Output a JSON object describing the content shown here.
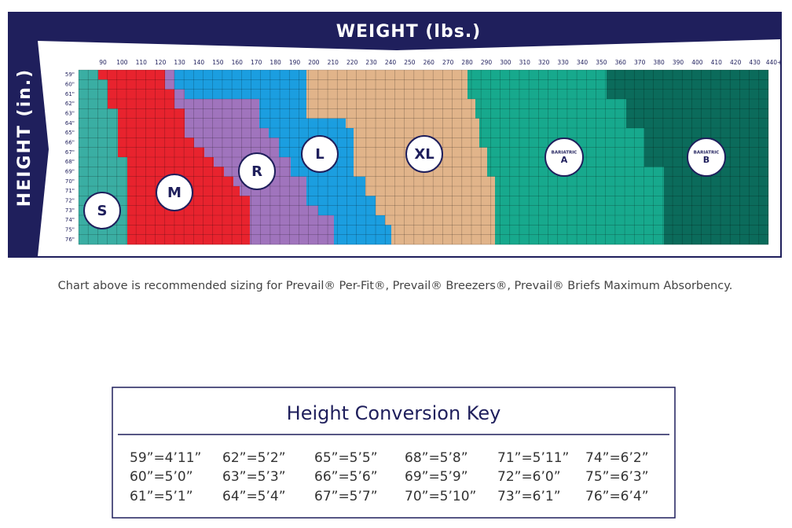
{
  "header": {
    "title": "WEIGHT (lbs.)",
    "side_title": "HEIGHT (in.)"
  },
  "weight_labels": [
    "90",
    "100",
    "110",
    "120",
    "130",
    "140",
    "150",
    "160",
    "170",
    "180",
    "190",
    "200",
    "210",
    "220",
    "230",
    "240",
    "250",
    "260",
    "270",
    "280",
    "290",
    "300",
    "310",
    "320",
    "330",
    "340",
    "350",
    "360",
    "370",
    "380",
    "390",
    "400",
    "410",
    "420",
    "430",
    "440+"
  ],
  "height_labels": [
    "59\"",
    "60\"",
    "61\"",
    "62\"",
    "63\"",
    "64\"",
    "65\"",
    "66\"",
    "67\"",
    "68\"",
    "69\"",
    "70\"",
    "71\"",
    "72\"",
    "73\"",
    "74\"",
    "75\"",
    "76\""
  ],
  "sizes": [
    {
      "label": "S"
    },
    {
      "label": "M"
    },
    {
      "label": "R"
    },
    {
      "label": "L"
    },
    {
      "label": "XL"
    },
    {
      "sublabel": "BARIATRIC",
      "label": "A"
    },
    {
      "sublabel": "BARIATRIC",
      "label": "B"
    }
  ],
  "caption": "Chart above is recommended sizing for Prevail® Per-Fit®, Prevail® Breezers®, Prevail® Briefs Maximum Absorbency.",
  "key": {
    "title": "Height Conversion Key",
    "entries": [
      "59”=4’11”",
      "60”=5’0”",
      "61”=5’1”",
      "62”=5’2”",
      "63”=5’3”",
      "64”=5’4”",
      "65”=5’5”",
      "66”=5’6”",
      "67”=5’7”",
      "68”=5’8”",
      "69”=5’9”",
      "70”=5’10”",
      "71”=5’11”",
      "72”=6’0”",
      "73”=6’1”",
      "74”=6’2”",
      "75”=6’3”",
      "76”=6’4”"
    ]
  }
}
